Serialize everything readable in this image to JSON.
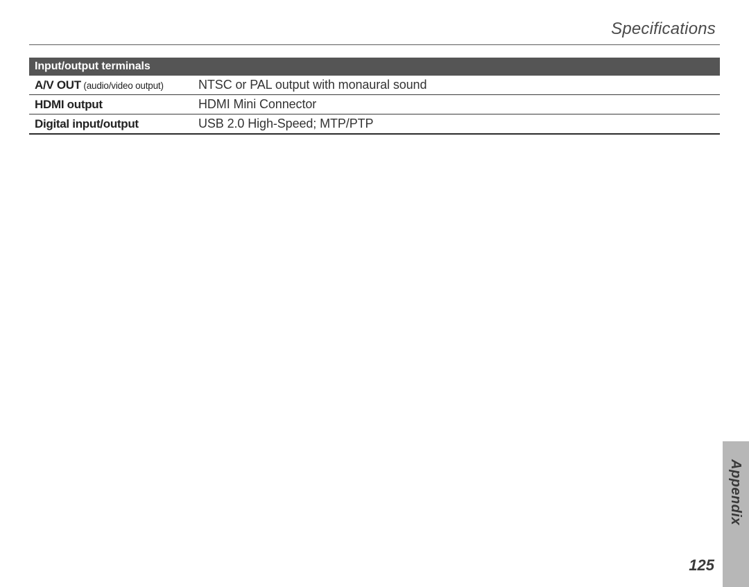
{
  "header": {
    "title": "Specifications"
  },
  "table": {
    "section_header": "Input/output terminals",
    "rows": [
      {
        "label_bold": "A/V OUT",
        "label_note": " (audio/video output)",
        "value": "NTSC or PAL output with monaural sound"
      },
      {
        "label_bold": "HDMI output",
        "label_note": "",
        "value": "HDMI Mini Connector"
      },
      {
        "label_bold": "Digital input/output",
        "label_note": "",
        "value": "USB 2.0 High-Speed; MTP/PTP"
      }
    ]
  },
  "side_tab": {
    "label": "Appendix"
  },
  "page_number": "125",
  "colors": {
    "header_bg": "#555555",
    "header_text": "#ffffff",
    "tab_bg": "#b7b7b7",
    "rule": "#5a5a5a",
    "row_border": "#3a3a3a"
  }
}
